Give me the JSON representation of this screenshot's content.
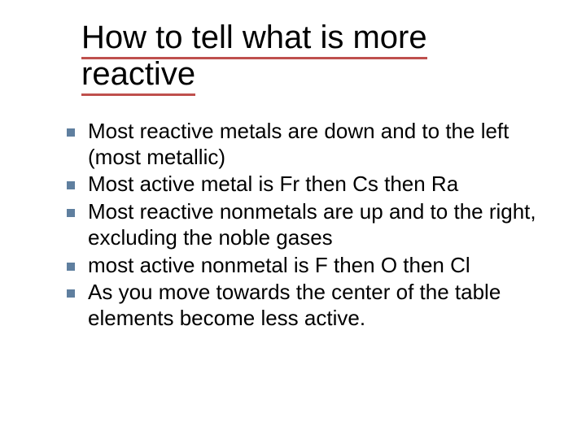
{
  "slide": {
    "title": "How to tell what is more reactive",
    "title_underline_color": "#bf504d",
    "bullet_color": "#5f7f9f",
    "title_fontsize": 40,
    "body_fontsize": 26,
    "background_color": "#ffffff",
    "text_color": "#000000",
    "bullets": [
      "Most reactive metals are down and to the left (most metallic)",
      "Most active metal is Fr then Cs then Ra",
      "Most reactive nonmetals are up and to the right, excluding the noble gases",
      "most active nonmetal is F then O then Cl",
      "As you move towards the center of the table elements become less active."
    ]
  }
}
